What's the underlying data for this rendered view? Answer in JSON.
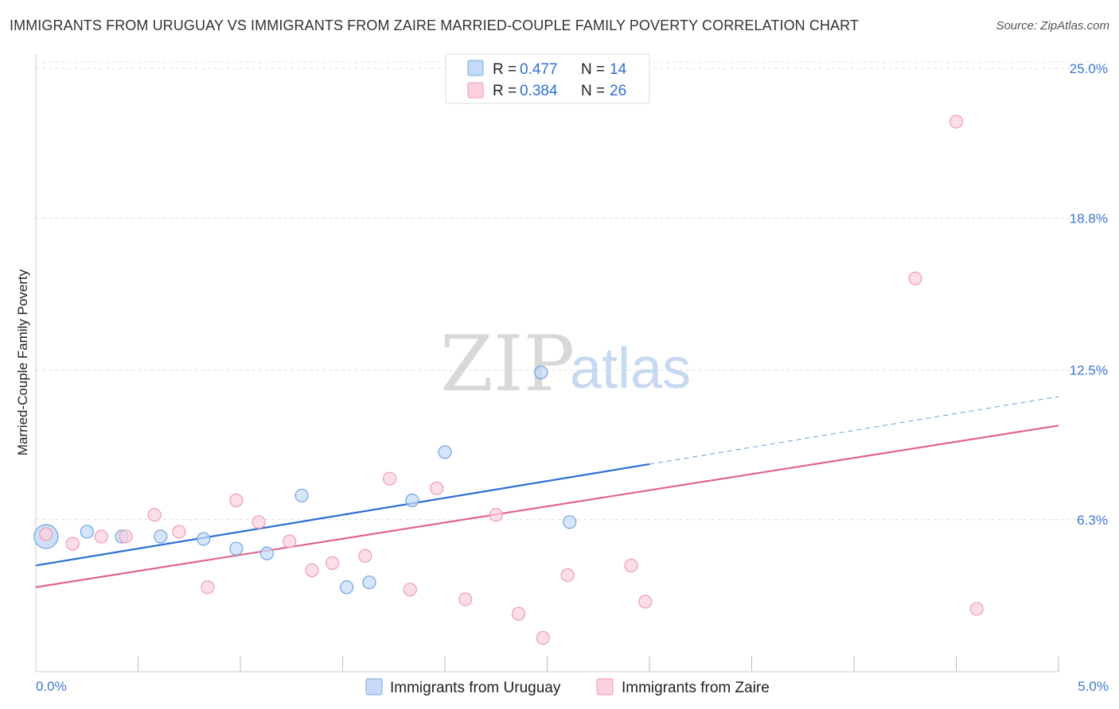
{
  "title": "IMMIGRANTS FROM URUGUAY VS IMMIGRANTS FROM ZAIRE MARRIED-COUPLE FAMILY POVERTY CORRELATION CHART",
  "source": "Source: ZipAtlas.com",
  "watermark": {
    "zip": "ZIP",
    "atlas": "atlas"
  },
  "legend": {
    "rows": [
      {
        "r_label": "R =",
        "r_value": "0.477",
        "n_label": "N =",
        "n_value": "14",
        "color": "#a9c8f0"
      },
      {
        "r_label": "R =",
        "r_value": "0.384",
        "n_label": "N =",
        "n_value": "26",
        "color": "#f7b9cb"
      }
    ]
  },
  "chart_data": {
    "type": "scatter",
    "title": "IMMIGRANTS FROM URUGUAY VS IMMIGRANTS FROM ZAIRE MARRIED-COUPLE FAMILY POVERTY CORRELATION CHART",
    "xlabel": "",
    "ylabel": "Married-Couple Family Poverty",
    "xlim": [
      0,
      5.0
    ],
    "ylim": [
      0,
      25.6
    ],
    "x_tick_labels": [
      "0.0%",
      "5.0%"
    ],
    "y_ticks": [
      6.3,
      12.5,
      18.8,
      25.0
    ],
    "y_tick_labels": [
      "6.3%",
      "12.5%",
      "18.8%",
      "25.0%"
    ],
    "grid": true,
    "legend_position": "top-center",
    "series": [
      {
        "name": "Immigrants from Uruguay",
        "color": "#6fa3e6",
        "fill": "#c5daf6",
        "line_color": "#2b6fd1",
        "points": [
          [
            0.05,
            5.6
          ],
          [
            0.25,
            5.8
          ],
          [
            0.42,
            5.6
          ],
          [
            0.61,
            5.6
          ],
          [
            0.82,
            5.5
          ],
          [
            0.98,
            5.1
          ],
          [
            1.13,
            4.9
          ],
          [
            1.3,
            7.3
          ],
          [
            1.52,
            3.5
          ],
          [
            1.63,
            3.7
          ],
          [
            1.84,
            7.1
          ],
          [
            2.0,
            9.1
          ],
          [
            2.47,
            12.4
          ],
          [
            2.61,
            6.2
          ]
        ],
        "trend": {
          "x": [
            0.0,
            3.0
          ],
          "y": [
            4.4,
            8.6
          ]
        },
        "trend_extension": {
          "x": [
            3.0,
            5.0
          ],
          "y": [
            8.6,
            11.4
          ]
        }
      },
      {
        "name": "Immigrants from Zaire",
        "color": "#f09ab5",
        "fill": "#fad0dd",
        "line_color": "#e0648e",
        "points": [
          [
            0.05,
            5.7
          ],
          [
            0.18,
            5.3
          ],
          [
            0.32,
            5.6
          ],
          [
            0.44,
            5.6
          ],
          [
            0.58,
            6.5
          ],
          [
            0.7,
            5.8
          ],
          [
            0.84,
            3.5
          ],
          [
            0.98,
            7.1
          ],
          [
            1.09,
            6.2
          ],
          [
            1.24,
            5.4
          ],
          [
            1.35,
            4.2
          ],
          [
            1.45,
            4.5
          ],
          [
            1.61,
            4.8
          ],
          [
            1.73,
            8.0
          ],
          [
            1.83,
            3.4
          ],
          [
            1.96,
            7.6
          ],
          [
            2.1,
            3.0
          ],
          [
            2.25,
            6.5
          ],
          [
            2.36,
            2.4
          ],
          [
            2.48,
            1.4
          ],
          [
            2.6,
            4.0
          ],
          [
            2.91,
            4.4
          ],
          [
            2.98,
            2.9
          ],
          [
            4.3,
            16.3
          ],
          [
            4.5,
            22.8
          ],
          [
            4.6,
            2.6
          ]
        ],
        "trend": {
          "x": [
            0.0,
            5.0
          ],
          "y": [
            3.5,
            10.2
          ]
        }
      }
    ]
  }
}
